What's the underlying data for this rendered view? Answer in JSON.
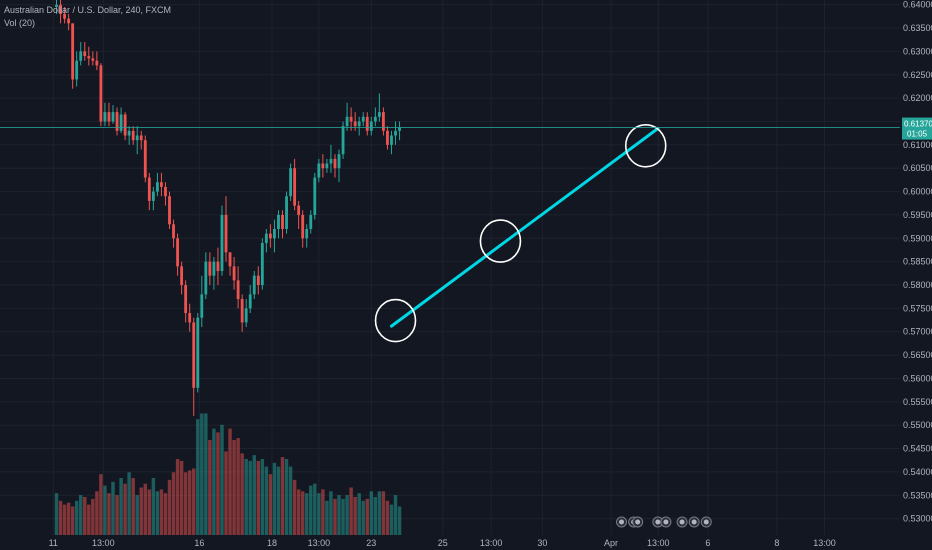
{
  "legend": {
    "symbol_title": "Australian Dollar / U.S. Dollar, 240, FXCM",
    "volume_title": "Vol (20)"
  },
  "price_tag": {
    "price": "0.61370",
    "countdown": "01:05"
  },
  "colors": {
    "background": "#131722",
    "grid": "#1e222d",
    "up": "#26a69a",
    "down": "#ef5350",
    "trendline": "#00d7e5",
    "annotation_circle": "#ffffff",
    "price_line": "#26a69a"
  },
  "chart_data": {
    "type": "candlestick",
    "title": "Australian Dollar / U.S. Dollar, 240, FXCM",
    "ylim": [
      0.5265,
      0.641
    ],
    "y_ticks": [
      0.64,
      0.635,
      0.63,
      0.625,
      0.62,
      0.615,
      0.61,
      0.605,
      0.6,
      0.595,
      0.59,
      0.585,
      0.58,
      0.575,
      0.57,
      0.565,
      0.56,
      0.555,
      0.55,
      0.545,
      0.54,
      0.535,
      0.53
    ],
    "y_tick_labels": [
      "0.64000",
      "0.63500",
      "0.63000",
      "0.62500",
      "0.62000",
      "0.61500",
      "0.61000",
      "0.60500",
      "0.60000",
      "0.59500",
      "0.59000",
      "0.58500",
      "0.58000",
      "0.57500",
      "0.57000",
      "0.56500",
      "0.56000",
      "0.55500",
      "0.55000",
      "0.54500",
      "0.54000",
      "0.53500",
      "0.53000"
    ],
    "x_tick_labels": [
      {
        "label": "11",
        "bar": -0.8
      },
      {
        "label": "13:00",
        "bar": 11.6
      },
      {
        "label": "16",
        "bar": 35.4
      },
      {
        "label": "18",
        "bar": 53.4
      },
      {
        "label": "13:00",
        "bar": 65.0
      },
      {
        "label": "23",
        "bar": 78.0
      },
      {
        "label": "25",
        "bar": 95.7
      },
      {
        "label": "13:00",
        "bar": 107.7
      },
      {
        "label": "30",
        "bar": 120.4
      },
      {
        "label": "Apr",
        "bar": 137.4
      },
      {
        "label": "13:00",
        "bar": 149.1
      },
      {
        "label": "6",
        "bar": 161.4
      },
      {
        "label": "8",
        "bar": 178.5
      },
      {
        "label": "13:00",
        "bar": 190.3
      }
    ],
    "x_range_bars": [
      -14,
      209
    ],
    "ohlc": [
      [
        0.6395,
        0.642,
        0.638,
        0.64
      ],
      [
        0.64,
        0.641,
        0.636,
        0.638
      ],
      [
        0.638,
        0.6395,
        0.636,
        0.637
      ],
      [
        0.637,
        0.638,
        0.6345,
        0.636
      ],
      [
        0.636,
        0.636,
        0.622,
        0.624
      ],
      [
        0.624,
        0.63,
        0.6225,
        0.628
      ],
      [
        0.628,
        0.632,
        0.627,
        0.63
      ],
      [
        0.63,
        0.632,
        0.628,
        0.629
      ],
      [
        0.629,
        0.631,
        0.627,
        0.6285
      ],
      [
        0.6285,
        0.63,
        0.627,
        0.628
      ],
      [
        0.628,
        0.63,
        0.626,
        0.627
      ],
      [
        0.627,
        0.6275,
        0.614,
        0.615
      ],
      [
        0.615,
        0.619,
        0.614,
        0.617
      ],
      [
        0.617,
        0.619,
        0.614,
        0.615
      ],
      [
        0.615,
        0.6185,
        0.6145,
        0.617
      ],
      [
        0.617,
        0.618,
        0.612,
        0.613
      ],
      [
        0.613,
        0.618,
        0.6125,
        0.6165
      ],
      [
        0.6165,
        0.617,
        0.611,
        0.612
      ],
      [
        0.612,
        0.614,
        0.61,
        0.613
      ],
      [
        0.613,
        0.614,
        0.61,
        0.611
      ],
      [
        0.611,
        0.614,
        0.608,
        0.612
      ],
      [
        0.612,
        0.613,
        0.609,
        0.611
      ],
      [
        0.611,
        0.612,
        0.602,
        0.603
      ],
      [
        0.603,
        0.604,
        0.596,
        0.598
      ],
      [
        0.598,
        0.601,
        0.596,
        0.6
      ],
      [
        0.6,
        0.604,
        0.599,
        0.602
      ],
      [
        0.602,
        0.604,
        0.599,
        0.601
      ],
      [
        0.601,
        0.602,
        0.597,
        0.599
      ],
      [
        0.599,
        0.6,
        0.592,
        0.593
      ],
      [
        0.593,
        0.594,
        0.588,
        0.59
      ],
      [
        0.59,
        0.591,
        0.582,
        0.584
      ],
      [
        0.584,
        0.585,
        0.578,
        0.58
      ],
      [
        0.58,
        0.581,
        0.572,
        0.574
      ],
      [
        0.574,
        0.576,
        0.57,
        0.572
      ],
      [
        0.572,
        0.573,
        0.552,
        0.558
      ],
      [
        0.558,
        0.574,
        0.557,
        0.573
      ],
      [
        0.573,
        0.582,
        0.571,
        0.578
      ],
      [
        0.578,
        0.587,
        0.577,
        0.585
      ],
      [
        0.585,
        0.587,
        0.58,
        0.582
      ],
      [
        0.582,
        0.586,
        0.579,
        0.585
      ],
      [
        0.585,
        0.588,
        0.58,
        0.583
      ],
      [
        0.583,
        0.597,
        0.582,
        0.595
      ],
      [
        0.595,
        0.599,
        0.585,
        0.587
      ],
      [
        0.587,
        0.587,
        0.582,
        0.584
      ],
      [
        0.584,
        0.586,
        0.579,
        0.581
      ],
      [
        0.581,
        0.584,
        0.575,
        0.577
      ],
      [
        0.577,
        0.578,
        0.57,
        0.572
      ],
      [
        0.572,
        0.577,
        0.571,
        0.575
      ],
      [
        0.575,
        0.58,
        0.574,
        0.578
      ],
      [
        0.578,
        0.583,
        0.577,
        0.582
      ],
      [
        0.582,
        0.584,
        0.578,
        0.58
      ],
      [
        0.58,
        0.59,
        0.579,
        0.589
      ],
      [
        0.589,
        0.592,
        0.587,
        0.591
      ],
      [
        0.591,
        0.593,
        0.588,
        0.59
      ],
      [
        0.59,
        0.594,
        0.587,
        0.592
      ],
      [
        0.592,
        0.596,
        0.59,
        0.595
      ],
      [
        0.595,
        0.596,
        0.59,
        0.592
      ],
      [
        0.592,
        0.6,
        0.591,
        0.599
      ],
      [
        0.599,
        0.606,
        0.598,
        0.605
      ],
      [
        0.605,
        0.607,
        0.596,
        0.597
      ],
      [
        0.597,
        0.598,
        0.592,
        0.595
      ],
      [
        0.595,
        0.596,
        0.588,
        0.59
      ],
      [
        0.59,
        0.593,
        0.588,
        0.592
      ],
      [
        0.592,
        0.596,
        0.591,
        0.595
      ],
      [
        0.595,
        0.604,
        0.594,
        0.603
      ],
      [
        0.603,
        0.607,
        0.602,
        0.606
      ],
      [
        0.606,
        0.608,
        0.603,
        0.605
      ],
      [
        0.605,
        0.607,
        0.604,
        0.606
      ],
      [
        0.606,
        0.61,
        0.604,
        0.607
      ],
      [
        0.607,
        0.608,
        0.603,
        0.605
      ],
      [
        0.605,
        0.609,
        0.602,
        0.608
      ],
      [
        0.608,
        0.615,
        0.607,
        0.614
      ],
      [
        0.614,
        0.619,
        0.613,
        0.616
      ],
      [
        0.616,
        0.618,
        0.613,
        0.615
      ],
      [
        0.615,
        0.617,
        0.613,
        0.614
      ],
      [
        0.614,
        0.616,
        0.612,
        0.615
      ],
      [
        0.615,
        0.617,
        0.614,
        0.616
      ],
      [
        0.616,
        0.617,
        0.612,
        0.613
      ],
      [
        0.613,
        0.616,
        0.612,
        0.615
      ],
      [
        0.615,
        0.618,
        0.614,
        0.616
      ],
      [
        0.616,
        0.621,
        0.615,
        0.617
      ],
      [
        0.617,
        0.618,
        0.612,
        0.613
      ],
      [
        0.613,
        0.614,
        0.609,
        0.61
      ],
      [
        0.61,
        0.613,
        0.608,
        0.612
      ],
      [
        0.612,
        0.615,
        0.61,
        0.613
      ],
      [
        0.613,
        0.615,
        0.611,
        0.6137
      ]
    ],
    "volume": [
      22,
      18,
      16,
      17,
      15,
      18,
      21,
      20,
      16,
      19,
      23,
      32,
      26,
      22,
      28,
      21,
      30,
      27,
      33,
      30,
      21,
      25,
      27,
      24,
      30,
      23,
      24,
      22,
      29,
      33,
      40,
      39,
      33,
      34,
      35,
      61,
      64,
      64,
      50,
      56,
      54,
      58,
      44,
      56,
      50,
      51,
      43,
      40,
      39,
      42,
      39,
      40,
      36,
      32,
      38,
      36,
      41,
      40,
      36,
      29,
      24,
      23,
      22,
      26,
      27,
      22,
      24,
      18,
      23,
      19,
      21,
      19,
      21,
      25,
      20,
      22,
      18,
      19,
      23,
      20,
      23,
      23,
      18,
      16,
      21,
      15
    ],
    "trendline": {
      "from": {
        "bar": 83,
        "price": 0.5712
      },
      "to": {
        "bar": 149,
        "price": 0.6135
      }
    },
    "circles": [
      {
        "bar": 84,
        "price": 0.5724
      },
      {
        "bar": 110,
        "price": 0.5894
      },
      {
        "bar": 146,
        "price": 0.6098
      }
    ],
    "last_price": 0.6137
  }
}
